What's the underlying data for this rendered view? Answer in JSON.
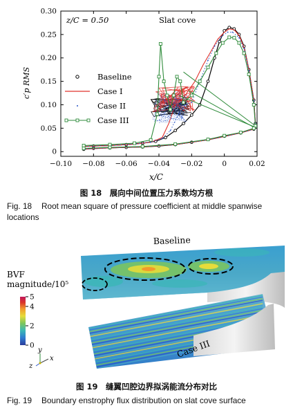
{
  "figure18": {
    "chart_data": {
      "type": "line",
      "annotation_left": "z/C = 0.50",
      "annotation_right": "Slat cove",
      "xlabel": "x/C",
      "ylabel": "c′p RMS",
      "xlim": [
        -0.1,
        0.02
      ],
      "ylim": [
        -0.01,
        0.3
      ],
      "xticks": [
        "−0.10",
        "−0.08",
        "−0.06",
        "−0.04",
        "−0.02",
        "0",
        "0.02"
      ],
      "yticks": [
        "0",
        "0.05",
        "0.10",
        "0.15",
        "0.20",
        "0.25",
        "0.30"
      ],
      "legend_location": "center-left",
      "series": [
        {
          "name": "Baseline",
          "color": "#000000",
          "marker": "circle",
          "upper": [
            [
              -0.086,
              0.011
            ],
            [
              -0.08,
              0.012
            ],
            [
              -0.07,
              0.013
            ],
            [
              -0.06,
              0.015
            ],
            [
              -0.05,
              0.018
            ],
            [
              -0.042,
              0.022
            ],
            [
              -0.036,
              0.03
            ],
            [
              -0.03,
              0.045
            ],
            [
              -0.025,
              0.06
            ],
            [
              -0.02,
              0.078
            ],
            [
              -0.015,
              0.1
            ],
            [
              -0.01,
              0.15
            ],
            [
              -0.006,
              0.2
            ],
            [
              -0.003,
              0.235
            ],
            [
              0.0,
              0.258
            ],
            [
              0.003,
              0.265
            ],
            [
              0.006,
              0.262
            ],
            [
              0.009,
              0.25
            ],
            [
              0.012,
              0.225
            ],
            [
              0.015,
              0.175
            ],
            [
              0.018,
              0.11
            ],
            [
              0.019,
              0.06
            ]
          ],
          "lower": [
            [
              -0.086,
              0.005
            ],
            [
              -0.08,
              0.007
            ],
            [
              -0.07,
              0.008
            ],
            [
              -0.06,
              0.009
            ],
            [
              -0.05,
              0.01
            ],
            [
              -0.04,
              0.012
            ],
            [
              -0.03,
              0.015
            ],
            [
              -0.02,
              0.02
            ],
            [
              -0.01,
              0.026
            ],
            [
              0.0,
              0.033
            ],
            [
              0.01,
              0.04
            ],
            [
              0.018,
              0.048
            ]
          ],
          "cloud_range": {
            "x": [
              -0.045,
              -0.02
            ],
            "y": [
              0.075,
              0.115
            ]
          }
        },
        {
          "name": "Case I",
          "color": "#e0302a",
          "marker": "none",
          "upper": [
            [
              -0.086,
              0.011
            ],
            [
              -0.07,
              0.013
            ],
            [
              -0.055,
              0.016
            ],
            [
              -0.045,
              0.02
            ],
            [
              -0.038,
              0.03
            ],
            [
              -0.034,
              0.06
            ],
            [
              -0.03,
              0.1
            ],
            [
              -0.026,
              0.11
            ],
            [
              -0.022,
              0.13
            ],
            [
              -0.018,
              0.15
            ],
            [
              -0.013,
              0.185
            ],
            [
              -0.008,
              0.215
            ],
            [
              -0.004,
              0.24
            ],
            [
              0.0,
              0.255
            ],
            [
              0.003,
              0.262
            ],
            [
              0.006,
              0.26
            ],
            [
              0.009,
              0.248
            ],
            [
              0.012,
              0.222
            ],
            [
              0.015,
              0.175
            ],
            [
              0.018,
              0.11
            ],
            [
              0.019,
              0.06
            ]
          ],
          "lower": [
            [
              -0.086,
              0.005
            ],
            [
              -0.07,
              0.008
            ],
            [
              -0.05,
              0.01
            ],
            [
              -0.03,
              0.015
            ],
            [
              -0.01,
              0.025
            ],
            [
              0.0,
              0.032
            ],
            [
              0.01,
              0.04
            ],
            [
              0.018,
              0.048
            ]
          ],
          "cloud_range": {
            "x": [
              -0.044,
              -0.018
            ],
            "y": [
              0.085,
              0.14
            ]
          }
        },
        {
          "name": "Case II",
          "color": "#2a55c8",
          "marker": "dot",
          "upper": [
            [
              -0.086,
              0.011
            ],
            [
              -0.07,
              0.013
            ],
            [
              -0.055,
              0.016
            ],
            [
              -0.045,
              0.02
            ],
            [
              -0.038,
              0.028
            ],
            [
              -0.033,
              0.045
            ],
            [
              -0.028,
              0.08
            ],
            [
              -0.024,
              0.1
            ],
            [
              -0.02,
              0.105
            ],
            [
              -0.015,
              0.15
            ],
            [
              -0.01,
              0.195
            ],
            [
              -0.006,
              0.225
            ],
            [
              -0.002,
              0.245
            ],
            [
              0.002,
              0.255
            ],
            [
              0.005,
              0.255
            ],
            [
              0.009,
              0.243
            ],
            [
              0.012,
              0.22
            ],
            [
              0.015,
              0.172
            ],
            [
              0.018,
              0.108
            ],
            [
              0.019,
              0.06
            ]
          ],
          "lower": [
            [
              -0.086,
              0.005
            ],
            [
              -0.07,
              0.008
            ],
            [
              -0.05,
              0.01
            ],
            [
              -0.03,
              0.015
            ],
            [
              -0.01,
              0.025
            ],
            [
              0.0,
              0.032
            ],
            [
              0.01,
              0.04
            ],
            [
              0.018,
              0.048
            ]
          ],
          "cloud_range": {
            "x": [
              -0.044,
              -0.022
            ],
            "y": [
              0.06,
              0.13
            ]
          }
        },
        {
          "name": "Case III",
          "color": "#2e8b3a",
          "marker": "square",
          "upper": [
            [
              -0.086,
              0.013
            ],
            [
              -0.07,
              0.015
            ],
            [
              -0.055,
              0.018
            ],
            [
              -0.045,
              0.025
            ],
            [
              -0.041,
              0.08
            ],
            [
              -0.04,
              0.16
            ],
            [
              -0.039,
              0.23
            ],
            [
              -0.037,
              0.15
            ],
            [
              -0.035,
              0.12
            ],
            [
              -0.033,
              0.09
            ],
            [
              -0.031,
              0.12
            ],
            [
              -0.029,
              0.16
            ],
            [
              -0.027,
              0.15
            ],
            [
              -0.025,
              0.105
            ],
            [
              -0.02,
              0.12
            ],
            [
              -0.015,
              0.15
            ],
            [
              -0.01,
              0.18
            ],
            [
              -0.005,
              0.21
            ],
            [
              -0.001,
              0.232
            ],
            [
              0.003,
              0.244
            ],
            [
              0.006,
              0.243
            ],
            [
              0.009,
              0.232
            ],
            [
              0.012,
              0.21
            ],
            [
              0.015,
              0.165
            ],
            [
              0.018,
              0.1
            ],
            [
              0.019,
              0.055
            ]
          ],
          "lower": [
            [
              -0.086,
              0.007
            ],
            [
              -0.07,
              0.009
            ],
            [
              -0.05,
              0.011
            ],
            [
              -0.03,
              0.016
            ],
            [
              -0.01,
              0.026
            ],
            [
              0.0,
              0.034
            ],
            [
              0.01,
              0.041
            ],
            [
              0.018,
              0.05
            ]
          ],
          "chords": [
            [
              [
                -0.025,
                0.17
              ],
              [
                0.019,
                0.055
              ]
            ],
            [
              [
                -0.022,
                0.13
              ],
              [
                0.019,
                0.05
              ]
            ],
            [
              [
                -0.028,
                0.12
              ],
              [
                0.019,
                0.052
              ]
            ]
          ]
        }
      ]
    },
    "caption_zh": "图 18　展向中间位置压力系数均方根",
    "caption_en_label": "Fig. 18",
    "caption_en_text": "Root mean square of pressure coefficient at middle spanwise locations"
  },
  "figure19": {
    "label_baseline": "Baseline",
    "label_case3": "Case III",
    "colorbar": {
      "title_line1": "BVF",
      "title_line2": "magnitude/10⁵",
      "ticks": [
        "5",
        "4",
        "2",
        "0"
      ],
      "tick_values": [
        5,
        4,
        2,
        0
      ],
      "colors": [
        "#2a3c9b",
        "#2f7bd0",
        "#3bb7b7",
        "#7cc65c",
        "#e6dc3a",
        "#f19a2c",
        "#d9342a",
        "#c2185b"
      ]
    },
    "axes_triad": {
      "x": "x",
      "y": "y",
      "z": "z"
    },
    "caption_zh": "图 19　缝翼凹腔边界拟涡能流分布对比",
    "caption_en_label": "Fig. 19",
    "caption_en_text": "Boundary enstrophy flux distribution on slat cove surface"
  }
}
